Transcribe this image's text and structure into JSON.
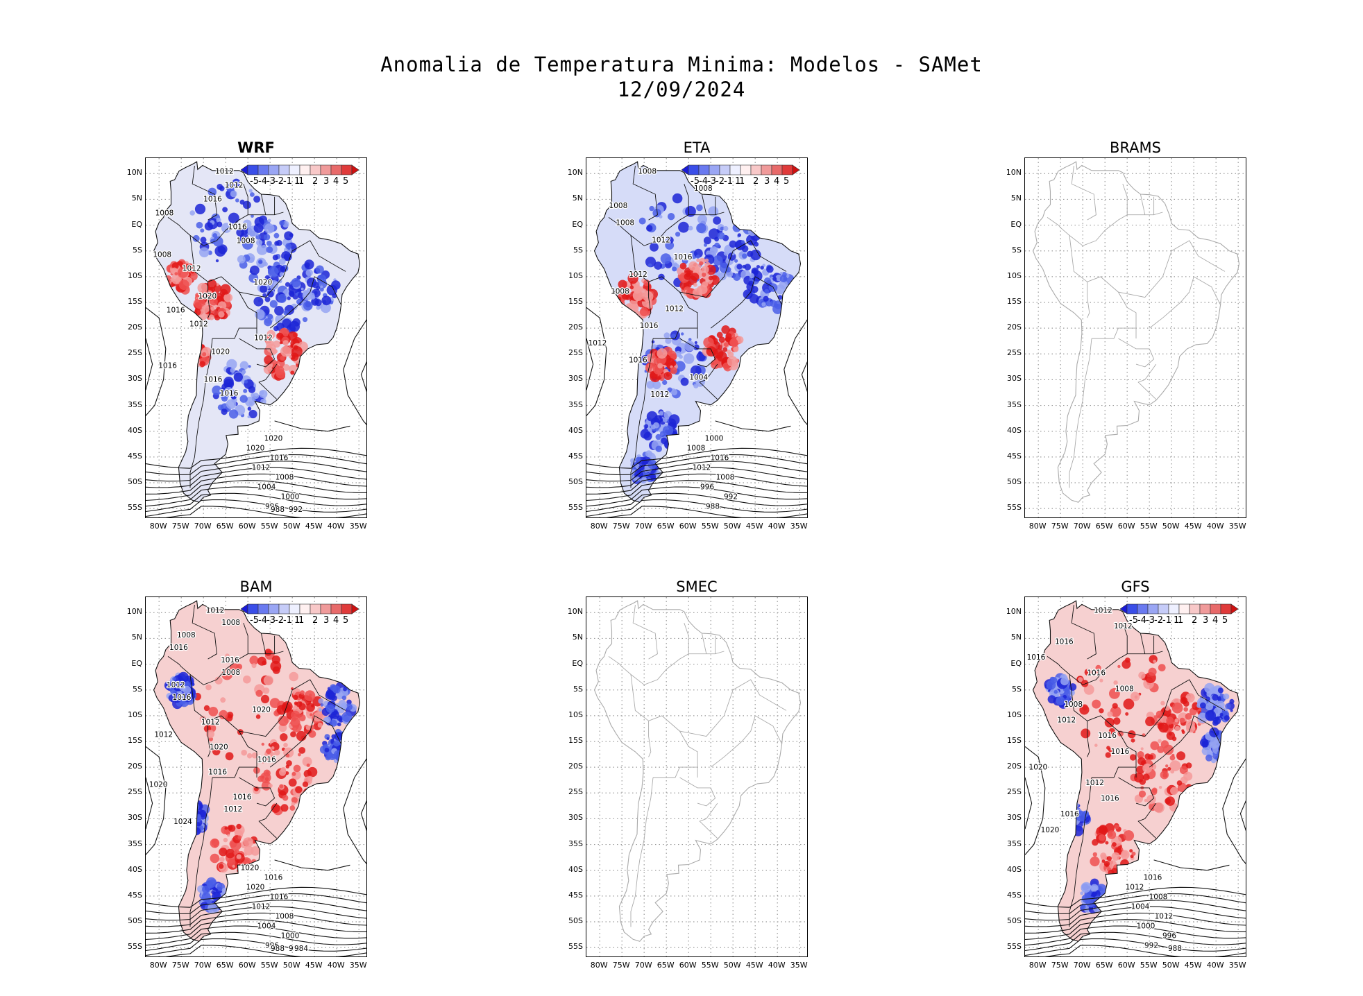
{
  "figure": {
    "title_line1": "Anomalia de Temperatura Minima: Modelos - SAMet",
    "title_line2": "12/09/2024"
  },
  "axes": {
    "lat_ticks": [
      "10N",
      "5N",
      "EQ",
      "5S",
      "10S",
      "15S",
      "20S",
      "25S",
      "30S",
      "35S",
      "40S",
      "45S",
      "50S",
      "55S"
    ],
    "lon_ticks": [
      "80W",
      "75W",
      "70W",
      "65W",
      "60W",
      "55W",
      "50W",
      "45W",
      "40W",
      "35W"
    ]
  },
  "colorbar": {
    "labels": [
      "-5",
      "-4",
      "-3",
      "-2",
      "-1",
      "1",
      "1",
      "2",
      "3",
      "4",
      "5"
    ],
    "colors": [
      "#1a1ad8",
      "#3a4ee8",
      "#6a7af0",
      "#9aa6f4",
      "#c6ccf8",
      "#eef0ff",
      "#fff0f0",
      "#f8c8c8",
      "#f09a9a",
      "#e86a6a",
      "#e03a3a",
      "#d01010"
    ]
  },
  "panels": [
    {
      "name": "WRF",
      "has_data": true,
      "pattern": "mixed",
      "isobars": [
        "1012",
        "1012",
        "1016",
        "1008",
        "1016",
        "1008",
        "1008",
        "1012",
        "1020",
        "1020",
        "1016",
        "1012",
        "1012",
        "1020",
        "1016",
        "1016",
        "1016",
        "1020",
        "1020",
        "1016",
        "1012",
        "1008",
        "1004",
        "1000",
        "996",
        "992",
        "988"
      ]
    },
    {
      "name": "ETA",
      "has_data": true,
      "pattern": "cold",
      "isobars": [
        "1008",
        "1008",
        "1008",
        "1008",
        "1012",
        "1016",
        "1012",
        "1008",
        "1012",
        "1016",
        "1012",
        "1016",
        "1004",
        "1012",
        "1000",
        "1008",
        "1016",
        "1012",
        "1008",
        "996",
        "992",
        "988"
      ]
    },
    {
      "name": "BRAMS",
      "has_data": false,
      "pattern": "none",
      "isobars": []
    },
    {
      "name": "BAM",
      "has_data": true,
      "pattern": "warm",
      "isobars": [
        "1012",
        "1008",
        "1008",
        "1016",
        "1016",
        "1008",
        "1012",
        "1016",
        "1020",
        "1012",
        "1012",
        "1020",
        "1016",
        "1016",
        "1020",
        "1016",
        "1012",
        "1024",
        "1020",
        "1016",
        "1020",
        "1016",
        "1012",
        "1008",
        "1004",
        "1000",
        "996",
        "992",
        "988",
        "984"
      ]
    },
    {
      "name": "SMEC",
      "has_data": false,
      "pattern": "none",
      "isobars": []
    },
    {
      "name": "GFS",
      "has_data": true,
      "pattern": "warm",
      "isobars": [
        "1012",
        "1012",
        "1016",
        "1016",
        "1016",
        "1008",
        "1008",
        "1012",
        "1016",
        "1016",
        "1020",
        "1012",
        "1016",
        "1016",
        "1020",
        "1016",
        "1012",
        "1008",
        "1004",
        "1012",
        "1000",
        "996",
        "992",
        "988"
      ]
    }
  ]
}
